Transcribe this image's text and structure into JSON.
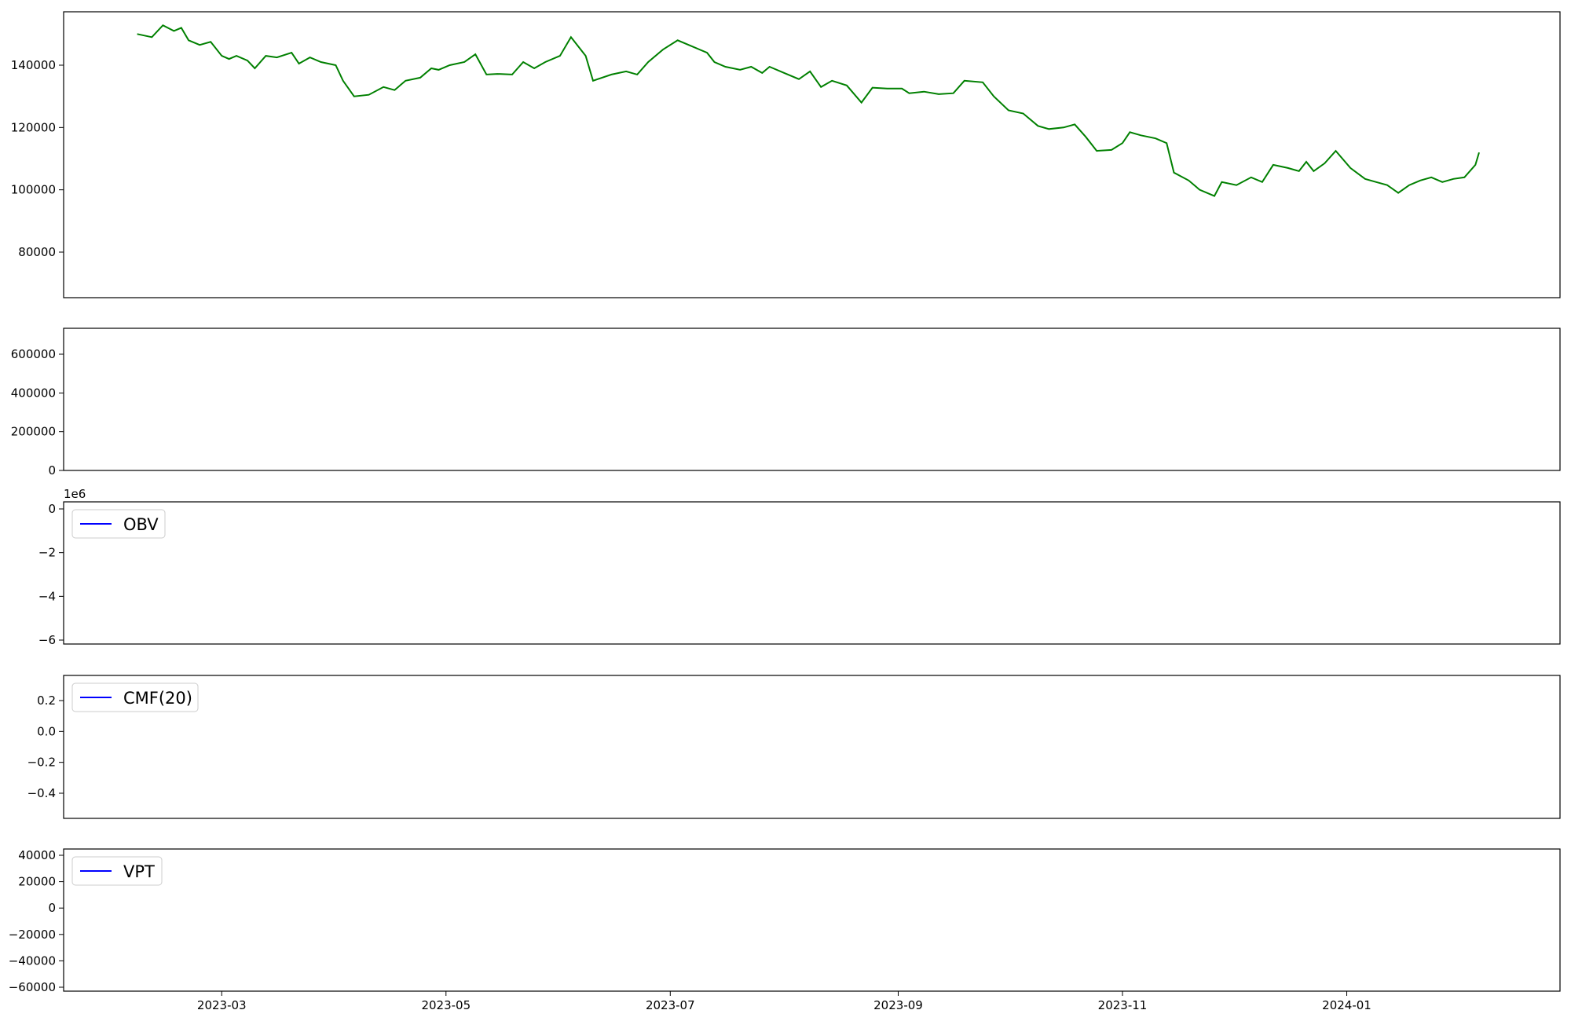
{
  "chart_data": [
    {
      "type": "line",
      "title": "",
      "xlabel": "",
      "ylabel": "",
      "series": [
        {
          "name": "",
          "color": "#008000",
          "points": [
            [
              "2023-02-06",
              150000
            ],
            [
              "2023-02-10",
              149000
            ],
            [
              "2023-02-13",
              152800
            ],
            [
              "2023-02-16",
              151000
            ],
            [
              "2023-02-18",
              152000
            ],
            [
              "2023-02-20",
              148000
            ],
            [
              "2023-02-23",
              146500
            ],
            [
              "2023-02-26",
              147500
            ],
            [
              "2023-03-01",
              143000
            ],
            [
              "2023-03-03",
              142000
            ],
            [
              "2023-03-05",
              143000
            ],
            [
              "2023-03-08",
              141500
            ],
            [
              "2023-03-10",
              139000
            ],
            [
              "2023-03-13",
              143000
            ],
            [
              "2023-03-16",
              142500
            ],
            [
              "2023-03-20",
              144000
            ],
            [
              "2023-03-22",
              140500
            ],
            [
              "2023-03-25",
              142500
            ],
            [
              "2023-03-28",
              141000
            ],
            [
              "2023-04-01",
              140000
            ],
            [
              "2023-04-03",
              135000
            ],
            [
              "2023-04-06",
              130000
            ],
            [
              "2023-04-10",
              130500
            ],
            [
              "2023-04-14",
              133000
            ],
            [
              "2023-04-17",
              132000
            ],
            [
              "2023-04-20",
              135000
            ],
            [
              "2023-04-24",
              136000
            ],
            [
              "2023-04-27",
              139000
            ],
            [
              "2023-04-29",
              138500
            ],
            [
              "2023-05-02",
              140000
            ],
            [
              "2023-05-06",
              141000
            ],
            [
              "2023-05-09",
              143500
            ],
            [
              "2023-05-12",
              137000
            ],
            [
              "2023-05-15",
              137200
            ],
            [
              "2023-05-19",
              137000
            ],
            [
              "2023-05-22",
              141000
            ],
            [
              "2023-05-25",
              139000
            ],
            [
              "2023-05-28",
              141000
            ],
            [
              "2023-06-01",
              143000
            ],
            [
              "2023-06-04",
              149000
            ],
            [
              "2023-06-08",
              143000
            ],
            [
              "2023-06-10",
              135000
            ],
            [
              "2023-06-15",
              137000
            ],
            [
              "2023-06-19",
              138000
            ],
            [
              "2023-06-22",
              137000
            ],
            [
              "2023-06-25",
              141000
            ],
            [
              "2023-06-29",
              145000
            ],
            [
              "2023-07-03",
              148000
            ],
            [
              "2023-07-07",
              146000
            ],
            [
              "2023-07-11",
              144000
            ],
            [
              "2023-07-13",
              141000
            ],
            [
              "2023-07-16",
              139500
            ],
            [
              "2023-07-20",
              138500
            ],
            [
              "2023-07-23",
              139500
            ],
            [
              "2023-07-26",
              137500
            ],
            [
              "2023-07-28",
              139500
            ],
            [
              "2023-08-01",
              137500
            ],
            [
              "2023-08-05",
              135500
            ],
            [
              "2023-08-08",
              138000
            ],
            [
              "2023-08-11",
              133000
            ],
            [
              "2023-08-14",
              135000
            ],
            [
              "2023-08-18",
              133500
            ],
            [
              "2023-08-22",
              128000
            ],
            [
              "2023-08-25",
              132800
            ],
            [
              "2023-08-29",
              132500
            ],
            [
              "2023-09-02",
              132500
            ],
            [
              "2023-09-04",
              131000
            ],
            [
              "2023-09-08",
              131500
            ],
            [
              "2023-09-12",
              130700
            ],
            [
              "2023-09-16",
              131000
            ],
            [
              "2023-09-19",
              135000
            ],
            [
              "2023-09-24",
              134500
            ],
            [
              "2023-09-27",
              130000
            ],
            [
              "2023-10-01",
              125500
            ],
            [
              "2023-10-05",
              124500
            ],
            [
              "2023-10-09",
              120500
            ],
            [
              "2023-10-12",
              119500
            ],
            [
              "2023-10-16",
              120000
            ],
            [
              "2023-10-19",
              121000
            ],
            [
              "2023-10-22",
              117000
            ],
            [
              "2023-10-25",
              112500
            ],
            [
              "2023-10-29",
              112800
            ],
            [
              "2023-11-01",
              115000
            ],
            [
              "2023-11-03",
              118500
            ],
            [
              "2023-11-06",
              117500
            ],
            [
              "2023-11-10",
              116500
            ],
            [
              "2023-11-13",
              115000
            ],
            [
              "2023-11-15",
              105500
            ],
            [
              "2023-11-19",
              103000
            ],
            [
              "2023-11-22",
              100000
            ],
            [
              "2023-11-26",
              98000
            ],
            [
              "2023-11-28",
              102500
            ],
            [
              "2023-12-02",
              101500
            ],
            [
              "2023-12-06",
              104000
            ],
            [
              "2023-12-09",
              102500
            ],
            [
              "2023-12-12",
              108000
            ],
            [
              "2023-12-16",
              107000
            ],
            [
              "2023-12-19",
              106000
            ],
            [
              "2023-12-21",
              109000
            ],
            [
              "2023-12-23",
              106000
            ],
            [
              "2023-12-26",
              108500
            ],
            [
              "2023-12-29",
              112500
            ],
            [
              "2024-01-02",
              107000
            ],
            [
              "2024-01-06",
              103500
            ],
            [
              "2024-01-09",
              102500
            ],
            [
              "2024-01-12",
              101500
            ],
            [
              "2024-01-15",
              99000
            ],
            [
              "2024-01-18",
              101500
            ],
            [
              "2024-01-21",
              103000
            ],
            [
              "2024-01-24",
              104000
            ],
            [
              "2024-01-27",
              102500
            ],
            [
              "2024-01-30",
              103500
            ],
            [
              "2024-02-02",
              104000
            ],
            [
              "2024-02-05",
              108000
            ],
            [
              "2024-02-06",
              112000
            ]
          ]
        }
      ]
    }
  ],
  "page": {
    "price_axis": {
      "ticks": [
        80000,
        100000,
        120000,
        140000
      ]
    },
    "volume_axis": {
      "ticks": [
        0,
        200000,
        400000,
        600000
      ]
    },
    "obv_axis": {
      "ticks": [
        0,
        -2,
        -4,
        -6
      ],
      "offset_text": "1e6"
    },
    "cmf_axis": {
      "ticks": [
        0.2,
        0.0,
        -0.2,
        -0.4
      ]
    },
    "vpt_axis": {
      "ticks": [
        40000,
        20000,
        0,
        -20000,
        -40000,
        -60000
      ]
    },
    "x_axis": {
      "ticks": [
        "2023-03",
        "2023-05",
        "2023-07",
        "2023-09",
        "2023-11",
        "2024-01"
      ]
    },
    "legends": {
      "obv": "OBV",
      "cmf": "CMF(20)",
      "vpt": "VPT"
    }
  }
}
